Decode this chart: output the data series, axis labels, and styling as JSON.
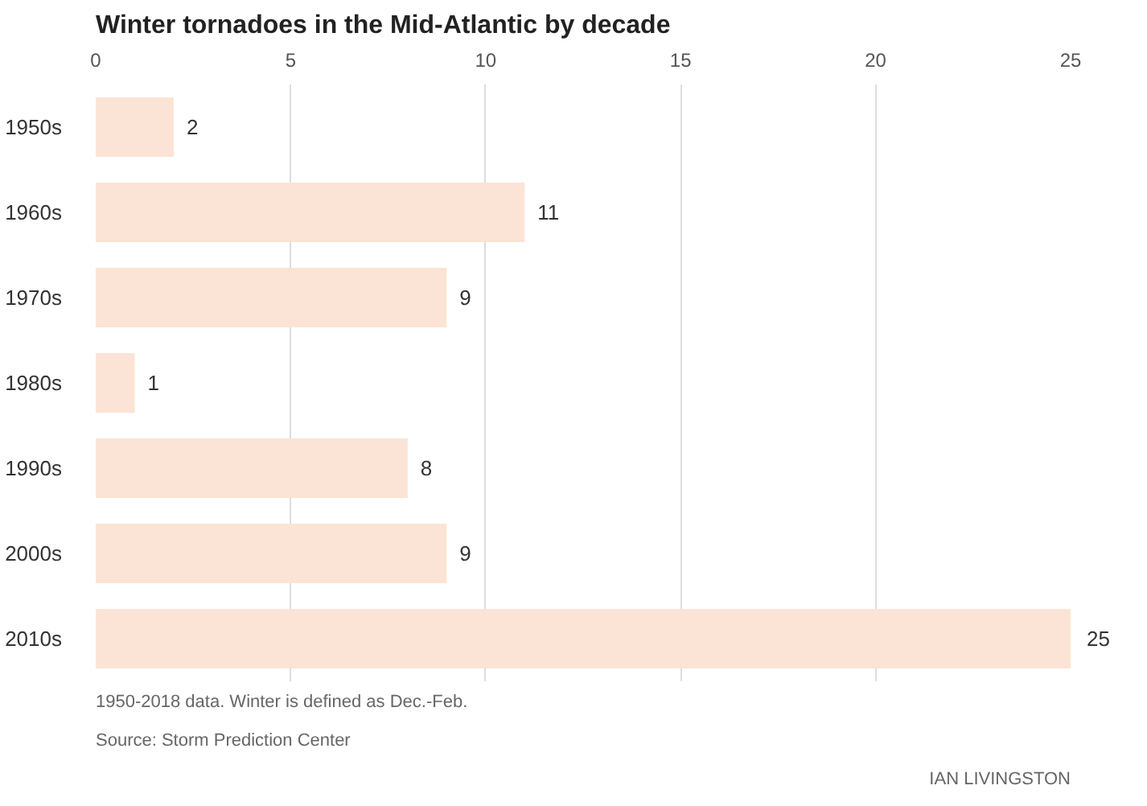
{
  "chart_data": {
    "type": "bar",
    "orientation": "horizontal",
    "title": "Winter tornadoes in the Mid-Atlantic by decade",
    "categories": [
      "1950s",
      "1960s",
      "1970s",
      "1980s",
      "1990s",
      "2000s",
      "2010s"
    ],
    "values": [
      2,
      11,
      9,
      1,
      8,
      9,
      25
    ],
    "color": "#fbe4d5",
    "xlim": [
      0,
      25
    ],
    "xticks": [
      0,
      5,
      10,
      15,
      20,
      25
    ],
    "grid": "x",
    "data_labels": true,
    "annotations": [
      "1950-2018 data. Winter is defined as Dec.-Feb.",
      "Source: Storm Prediction Center",
      "IAN LIVINGSTON"
    ]
  }
}
